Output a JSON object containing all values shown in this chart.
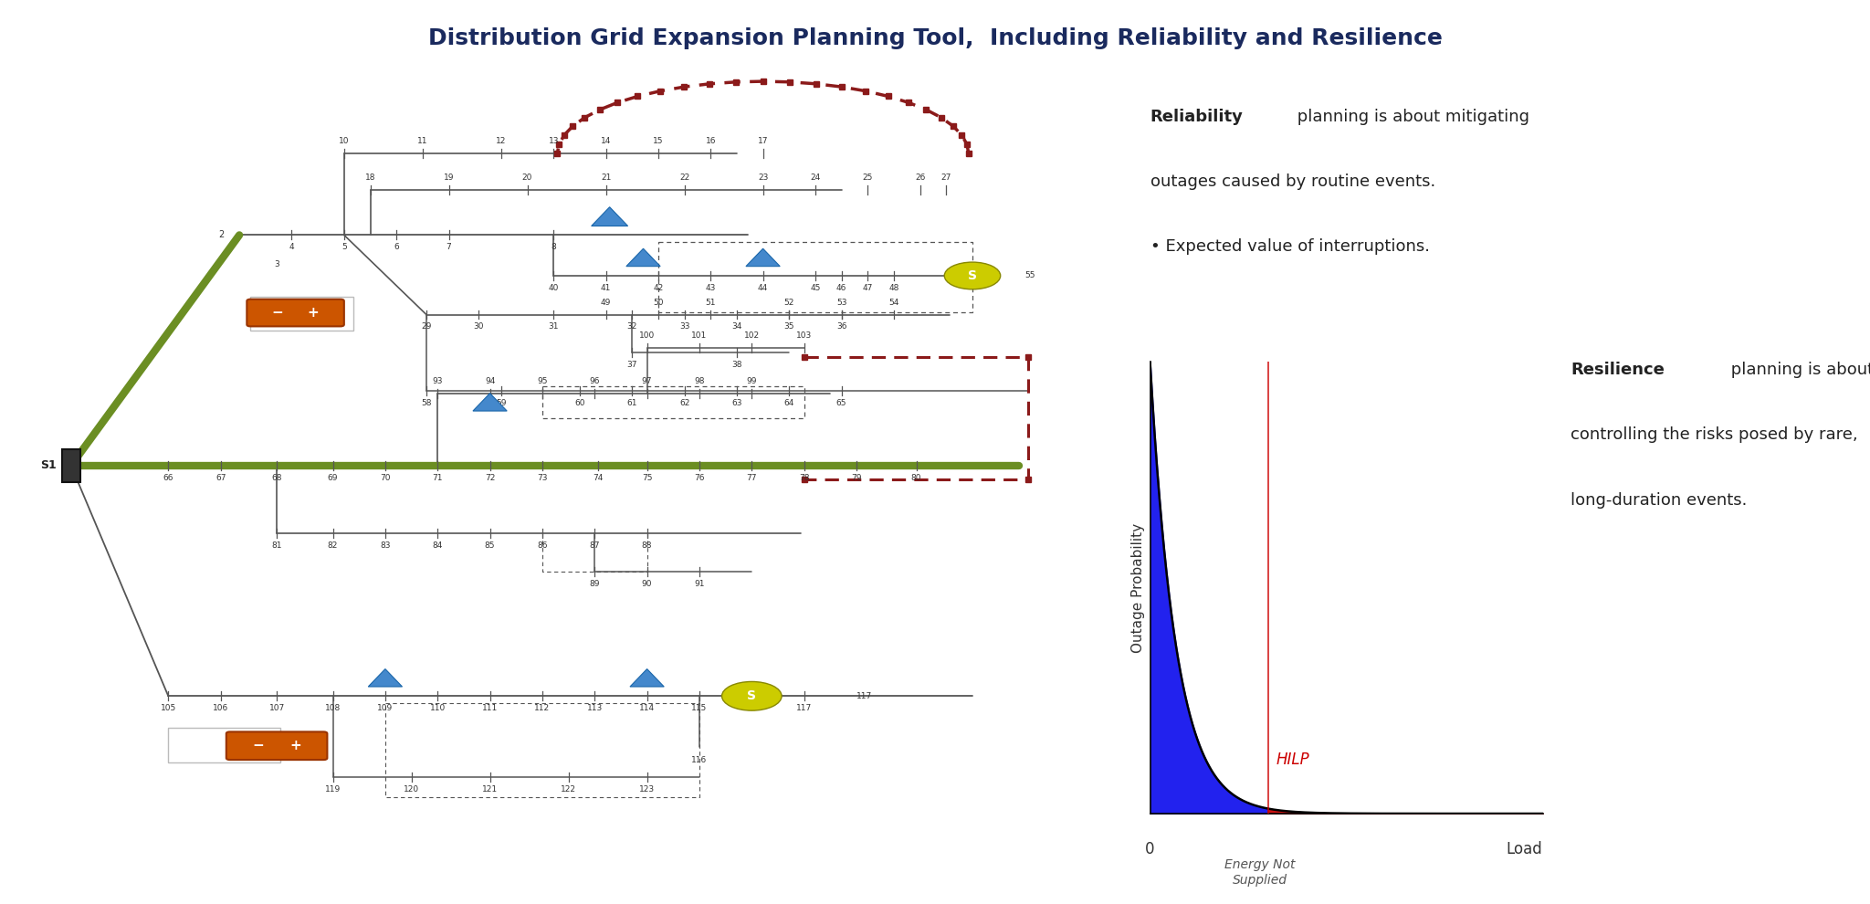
{
  "title": "Distribution Grid Expansion Planning Tool,  Including Reliability and Resilience",
  "title_fontsize": 18,
  "title_color": "#1a2a5e",
  "bg_color": "#ffffff",
  "line_color": "#555555",
  "green_line_color": "#6b8e23",
  "dashed_red_color": "#8b1a1a",
  "battery_color": "#cc5500",
  "triangle_color": "#4488cc",
  "switch_color": "#cccc00",
  "switch_text_color": "#ffffff",
  "curve_fill_blue": "#2222ee",
  "curve_fill_red": "#cc1111",
  "hilp_color": "#cc0000",
  "hilp_label": "HILP",
  "ylabel": "Outage Probability",
  "xlabel1": "0",
  "xlabel2": "Energy Not\nSupplied",
  "xlabel3": "Load",
  "reliability_bold": "Reliability",
  "reliability_rest": " planning is about mitigating\noutages caused by routine events.",
  "reliability_bullet": "• Expected value of interruptions.",
  "resilience_bold": "Resilience",
  "resilience_rest": " planning is about\ncontrolling the risks posed by rare,\nlong-duration events."
}
